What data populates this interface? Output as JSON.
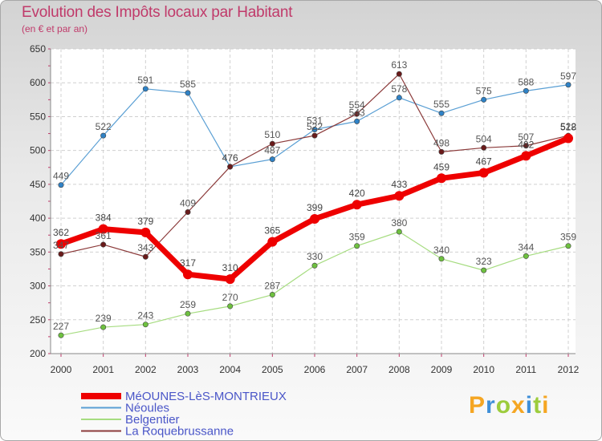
{
  "header": {
    "title": "Evolution des Impôts locaux par Habitant",
    "subtitle": "(en € et par an)"
  },
  "logo": {
    "letters": [
      "P",
      "r",
      "o",
      "x",
      "i",
      "t",
      "i"
    ]
  },
  "chart_data": {
    "type": "line",
    "title": "Evolution des Impôts locaux par Habitant",
    "subtitle": "(en € et par an)",
    "xlabel": "",
    "ylabel": "",
    "ylim": [
      200,
      650
    ],
    "yticks": [
      200,
      250,
      300,
      350,
      400,
      450,
      500,
      550,
      600,
      650
    ],
    "grid": true,
    "legend_position": "bottom-left",
    "x": [
      2000,
      2001,
      2002,
      2003,
      2004,
      2005,
      2006,
      2007,
      2008,
      2009,
      2010,
      2011,
      2012
    ],
    "series": [
      {
        "name": "Néoules",
        "color": "#5a9fd4",
        "marker": "#2f82c6",
        "labelColor": "#555555",
        "width": 1.2,
        "values": [
          449,
          522,
          591,
          585,
          476,
          487,
          531,
          543,
          578,
          555,
          575,
          588,
          597
        ]
      },
      {
        "name": "Belgentier",
        "color": "#a6dc80",
        "marker": "#6ec13f",
        "labelColor": "#555555",
        "width": 1.2,
        "values": [
          227,
          239,
          243,
          259,
          270,
          287,
          330,
          359,
          380,
          340,
          323,
          344,
          359
        ]
      },
      {
        "name": "La Roquebrussanne",
        "color": "#8b3a3a",
        "marker": "#6a1a1a",
        "labelColor": "#555555",
        "width": 1.2,
        "values": [
          347,
          361,
          343,
          409,
          476,
          510,
          522,
          554,
          613,
          498,
          504,
          507,
          522
        ]
      },
      {
        "name": "MéOUNES-LèS-MONTRIEUX",
        "color": "#ee0000",
        "marker": "#ee0000",
        "labelColor": "#444444",
        "width": 7,
        "values": [
          362,
          384,
          379,
          317,
          310,
          365,
          399,
          420,
          433,
          459,
          467,
          492,
          518
        ]
      }
    ],
    "legend_order": [
      "MéOUNES-LèS-MONTRIEUX",
      "Néoules",
      "Belgentier",
      "La Roquebrussanne"
    ],
    "legend_text_color": "#4a56c8"
  }
}
